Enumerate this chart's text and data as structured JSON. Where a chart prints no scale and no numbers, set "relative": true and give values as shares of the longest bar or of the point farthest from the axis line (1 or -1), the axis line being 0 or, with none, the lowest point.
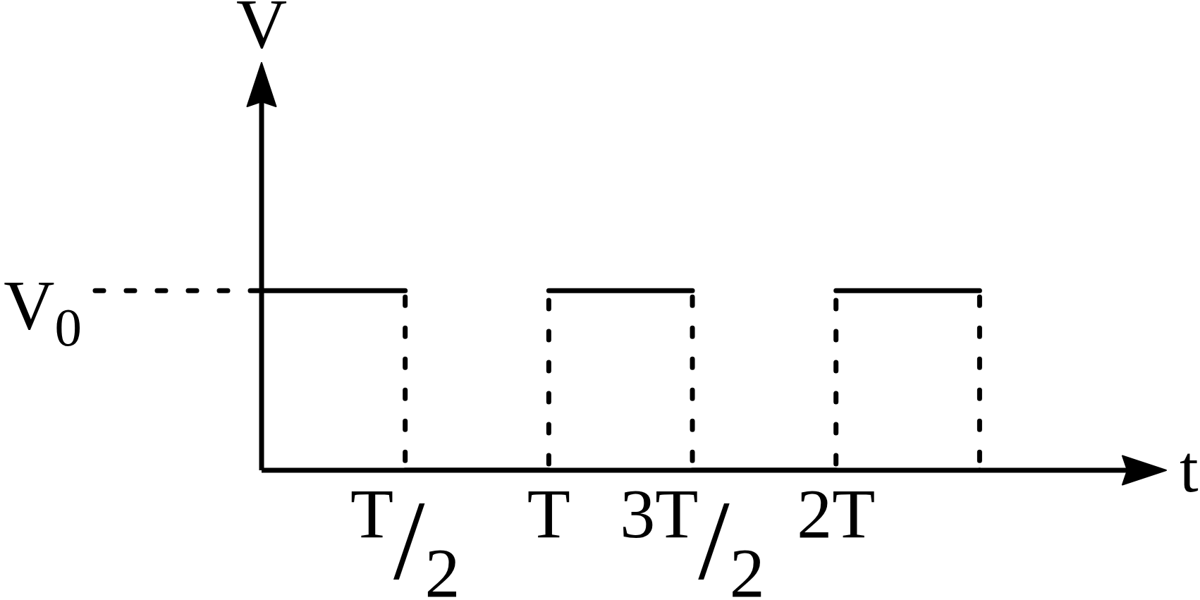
{
  "chart_data": {
    "type": "step",
    "xlabel": "t",
    "ylabel": "V",
    "relative": true,
    "categories": [
      null,
      "T$_{/2}$",
      "T",
      "3T$_{/2}$",
      "2T",
      null
    ],
    "series": [
      {
        "color": "#000000",
        "line_style": "dashed",
        "values": [
          1,
          0,
          1,
          0,
          1,
          0
        ]
      }
    ],
    "annotations": [
      "V$_{0}$"
    ]
  }
}
